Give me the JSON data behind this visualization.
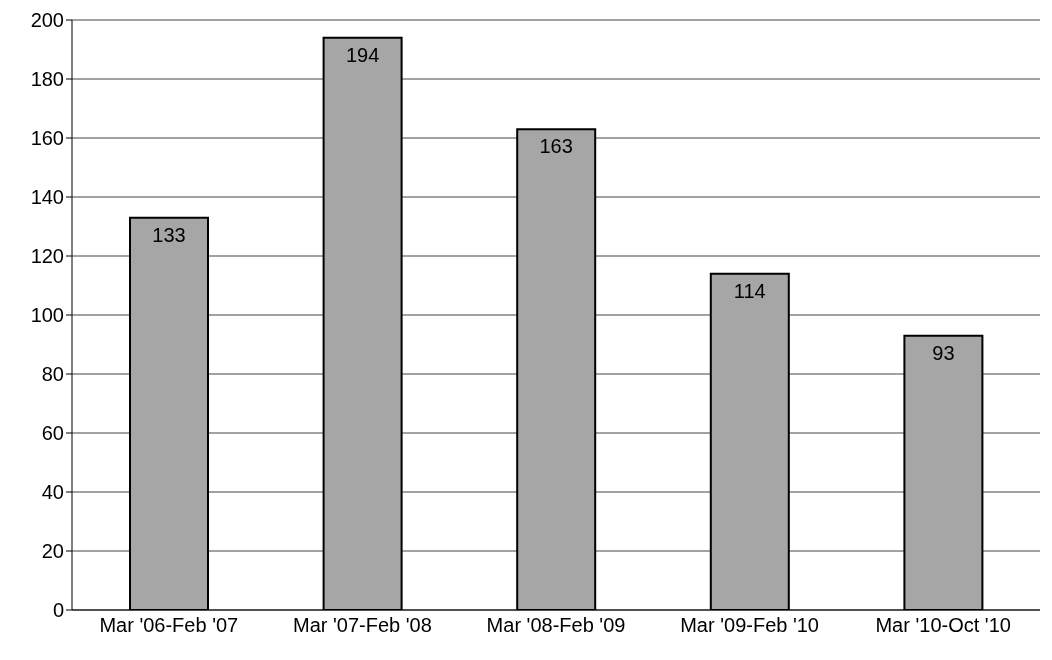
{
  "chart_data": {
    "type": "bar",
    "categories": [
      "Mar '06-Feb '07",
      "Mar '07-Feb '08",
      "Mar '08-Feb '09",
      "Mar '09-Feb '10",
      "Mar '10-Oct '10"
    ],
    "values": [
      133,
      194,
      163,
      114,
      93
    ],
    "color": "#a6a6a6",
    "ylim": [
      0,
      200
    ],
    "yticks": [
      0,
      20,
      40,
      60,
      80,
      100,
      120,
      140,
      160,
      180,
      200
    ],
    "grid": "y",
    "data_labels": true
  }
}
